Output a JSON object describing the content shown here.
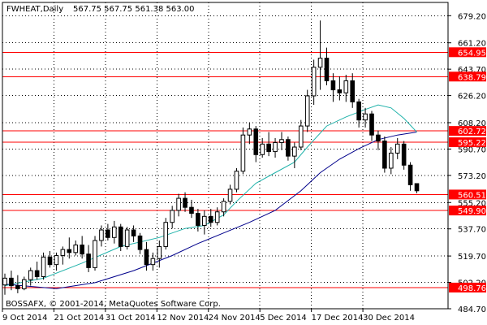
{
  "chart_data": {
    "type": "candlestick",
    "header": {
      "symbol": "FWHEAT,Daily",
      "values": "567.75 567.75 561.38 563.00"
    },
    "copyright": "BOSSAFX, © 2001-2014, MetaQuotes Software Corp.",
    "ylim": [
      484.7,
      688.0
    ],
    "y_ticks": [
      "679.20",
      "661.20",
      "643.70",
      "626.20",
      "608.20",
      "590.70",
      "573.20",
      "555.20",
      "537.70",
      "519.70",
      "502.20",
      "484.70"
    ],
    "x_ticks": [
      {
        "label": "9 Oct 2014",
        "index": 0
      },
      {
        "label": "21 Oct 2014",
        "index": 8
      },
      {
        "label": "31 Oct 2014",
        "index": 16
      },
      {
        "label": "12 Nov 2014",
        "index": 24
      },
      {
        "label": "24 Nov 2014",
        "index": 32
      },
      {
        "label": "5 Dec 2014",
        "index": 40
      },
      {
        "label": "17 Dec 2014",
        "index": 48
      },
      {
        "label": "30 Dec 2014",
        "index": 56
      }
    ],
    "levels": [
      {
        "value": 654.95,
        "label": "654.95"
      },
      {
        "value": 638.79,
        "label": "638.79"
      },
      {
        "value": 602.72,
        "label": "602.72"
      },
      {
        "value": 595.22,
        "label": "595.22"
      },
      {
        "value": 560.51,
        "label": "560.51"
      },
      {
        "value": 549.9,
        "label": "549.90"
      },
      {
        "value": 498.76,
        "label": "498.76"
      }
    ],
    "level_color": "#ff0000",
    "up_color": "#ffffff",
    "down_color": "#000000",
    "ma_fast_color": "#20b2aa",
    "ma_slow_color": "#00008b",
    "candles": [
      [
        500.5,
        508.0,
        494.0,
        505.0
      ],
      [
        505.0,
        510.0,
        497.0,
        500.0
      ],
      [
        500.0,
        507.0,
        495.0,
        498.0
      ],
      [
        498.0,
        506.0,
        497.0,
        504.0
      ],
      [
        504.0,
        512.0,
        500.0,
        510.0
      ],
      [
        510.0,
        516.0,
        504.0,
        506.0
      ],
      [
        506.0,
        522.0,
        504.0,
        519.0
      ],
      [
        519.0,
        523.0,
        512.0,
        514.0
      ],
      [
        514.0,
        522.0,
        510.0,
        520.0
      ],
      [
        520.0,
        526.0,
        514.0,
        524.0
      ],
      [
        524.0,
        532.0,
        518.0,
        522.0
      ],
      [
        522.0,
        530.0,
        520.0,
        527.0
      ],
      [
        527.0,
        533.0,
        518.0,
        521.0
      ],
      [
        521.0,
        527.0,
        509.0,
        512.0
      ],
      [
        512.0,
        533.0,
        510.0,
        530.0
      ],
      [
        530.0,
        540.0,
        526.0,
        537.0
      ],
      [
        537.0,
        541.0,
        530.0,
        532.0
      ],
      [
        532.0,
        543.0,
        528.0,
        539.0
      ],
      [
        539.0,
        541.0,
        523.0,
        526.0
      ],
      [
        526.0,
        539.0,
        524.0,
        537.0
      ],
      [
        537.0,
        540.0,
        529.0,
        533.0
      ],
      [
        533.0,
        535.0,
        521.0,
        524.0
      ],
      [
        524.0,
        529.0,
        510.0,
        514.0
      ],
      [
        514.0,
        522.0,
        510.0,
        518.0
      ],
      [
        518.0,
        530.0,
        512.0,
        526.0
      ],
      [
        526.0,
        545.0,
        524.0,
        542.0
      ],
      [
        542.0,
        553.0,
        538.0,
        550.0
      ],
      [
        550.0,
        561.0,
        546.0,
        558.0
      ],
      [
        558.0,
        562.0,
        549.0,
        552.0
      ],
      [
        552.0,
        557.0,
        545.0,
        548.0
      ],
      [
        548.0,
        551.0,
        536.0,
        540.0
      ],
      [
        540.0,
        550.0,
        534.0,
        546.0
      ],
      [
        546.0,
        551.0,
        539.0,
        542.0
      ],
      [
        542.0,
        552.0,
        540.0,
        549.0
      ],
      [
        549.0,
        558.0,
        546.0,
        556.0
      ],
      [
        556.0,
        567.0,
        554.0,
        564.0
      ],
      [
        564.0,
        578.0,
        562.0,
        576.0
      ],
      [
        576.0,
        605.0,
        574.0,
        600.0
      ],
      [
        600.0,
        608.0,
        594.0,
        604.0
      ],
      [
        604.0,
        606.0,
        582.0,
        587.0
      ],
      [
        587.0,
        598.0,
        585.0,
        594.0
      ],
      [
        594.0,
        602.0,
        586.0,
        589.0
      ],
      [
        589.0,
        598.0,
        585.0,
        595.0
      ],
      [
        595.0,
        602.0,
        590.0,
        597.0
      ],
      [
        597.0,
        599.0,
        583.0,
        586.0
      ],
      [
        586.0,
        595.0,
        578.0,
        592.0
      ],
      [
        592.0,
        610.0,
        590.0,
        606.0
      ],
      [
        606.0,
        630.0,
        602.0,
        626.0
      ],
      [
        626.0,
        650.0,
        620.0,
        645.0
      ],
      [
        645.0,
        676.0,
        630.0,
        651.0
      ],
      [
        651.0,
        658.0,
        633.0,
        636.0
      ],
      [
        636.0,
        641.0,
        622.0,
        630.0
      ],
      [
        630.0,
        639.0,
        623.0,
        628.0
      ],
      [
        628.0,
        640.0,
        622.0,
        636.0
      ],
      [
        636.0,
        641.0,
        618.0,
        622.0
      ],
      [
        622.0,
        624.0,
        605.0,
        610.0
      ],
      [
        610.0,
        618.0,
        605.0,
        614.0
      ],
      [
        614.0,
        616.0,
        596.0,
        600.0
      ],
      [
        600.0,
        603.0,
        590.0,
        596.0
      ],
      [
        596.0,
        599.0,
        575.0,
        578.0
      ],
      [
        578.0,
        592.0,
        574.0,
        588.0
      ],
      [
        588.0,
        598.0,
        584.0,
        594.0
      ],
      [
        594.0,
        596.0,
        577.0,
        580.0
      ],
      [
        580.0,
        582.0,
        563.0,
        567.0
      ],
      [
        567.75,
        567.75,
        561.38,
        563.0
      ]
    ],
    "ma_fast": [
      [
        0,
        500.0
      ],
      [
        6,
        505.0
      ],
      [
        12,
        515.0
      ],
      [
        18,
        526.0
      ],
      [
        24,
        532.0
      ],
      [
        28,
        538.0
      ],
      [
        31,
        540.0
      ],
      [
        34,
        547.0
      ],
      [
        36,
        556.0
      ],
      [
        39,
        568.0
      ],
      [
        42,
        575.0
      ],
      [
        45,
        582.0
      ],
      [
        47,
        592.0
      ],
      [
        50,
        606.0
      ],
      [
        53,
        612.0
      ],
      [
        56,
        617.0
      ],
      [
        58,
        620.0
      ],
      [
        60,
        618.0
      ],
      [
        62,
        611.0
      ],
      [
        64,
        602.0
      ]
    ],
    "ma_slow": [
      [
        0,
        501.0
      ],
      [
        8,
        498.0
      ],
      [
        14,
        502.0
      ],
      [
        20,
        510.0
      ],
      [
        26,
        520.0
      ],
      [
        30,
        528.0
      ],
      [
        34,
        535.0
      ],
      [
        38,
        542.0
      ],
      [
        42,
        550.0
      ],
      [
        46,
        563.0
      ],
      [
        49,
        575.0
      ],
      [
        52,
        584.0
      ],
      [
        55,
        591.0
      ],
      [
        58,
        597.0
      ],
      [
        61,
        600.0
      ],
      [
        64,
        602.0
      ]
    ]
  }
}
